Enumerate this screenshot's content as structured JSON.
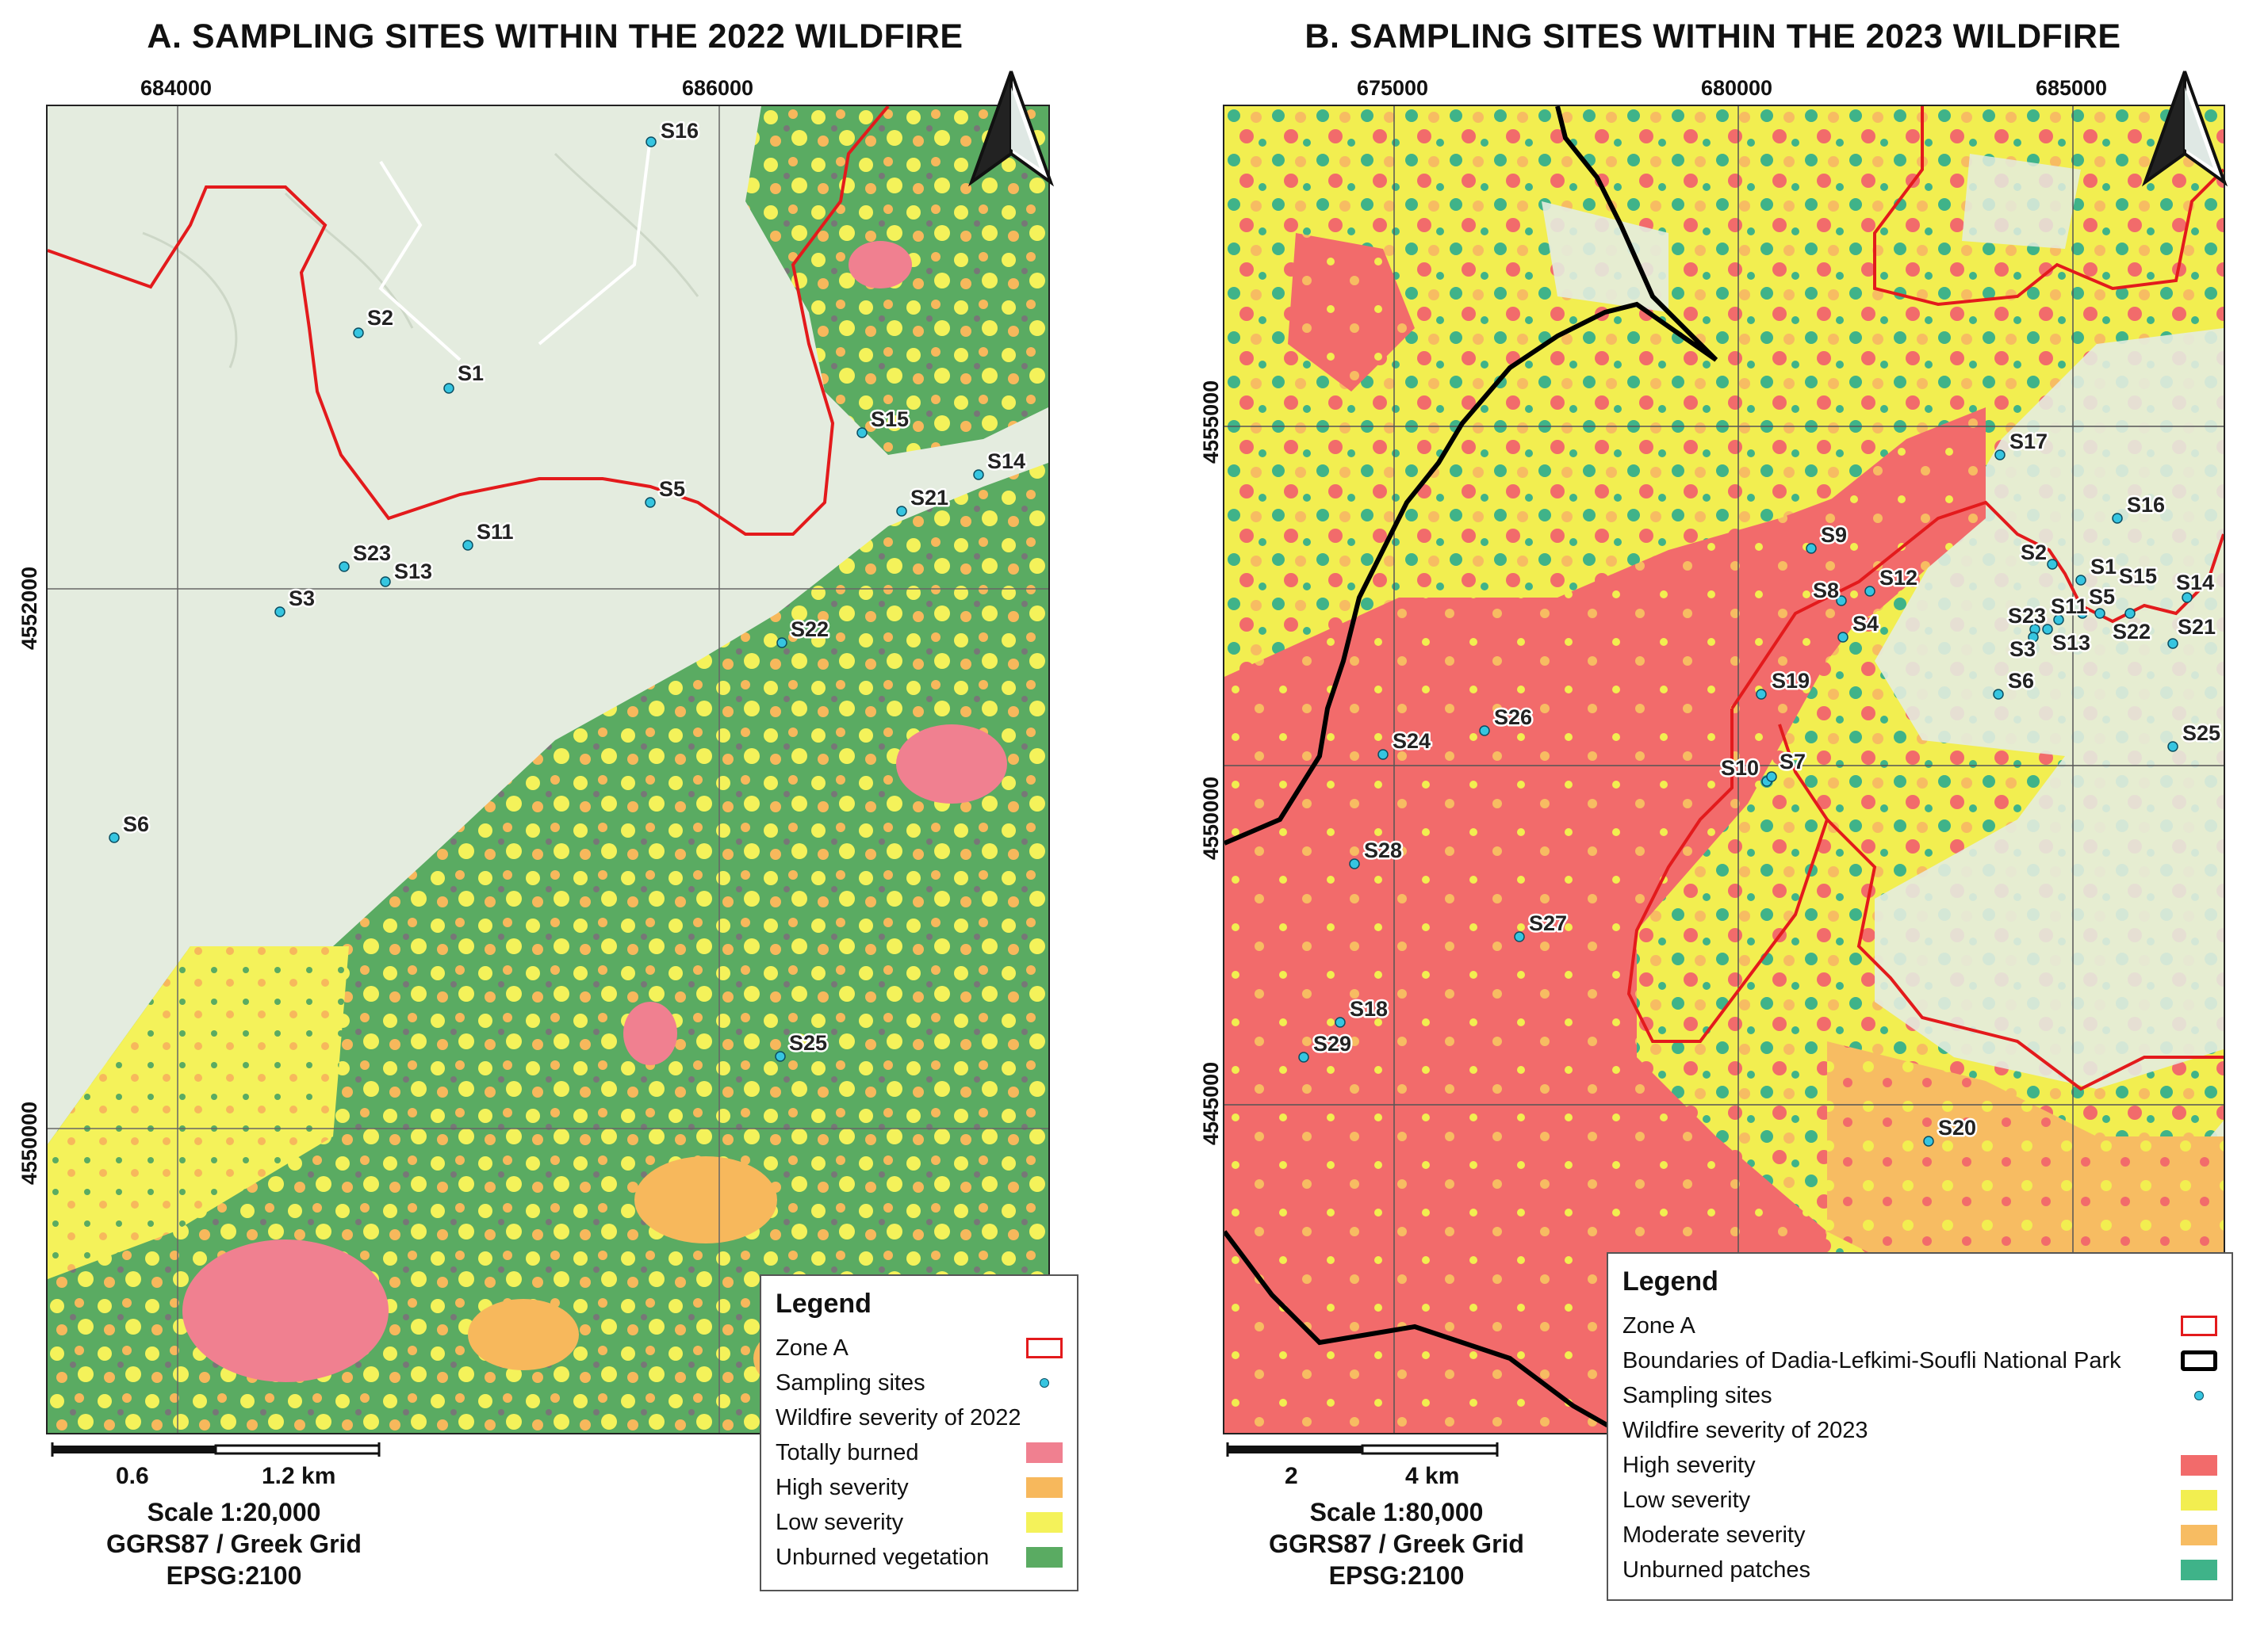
{
  "panel_a": {
    "title": "A. SAMPLING SITES WITHIN THE 2022 WILDFIRE",
    "x_ticks": [
      "684000",
      "686000"
    ],
    "y_ticks": [
      "4552000",
      "4550000"
    ],
    "sites": [
      "S16",
      "S2",
      "S1",
      "S15",
      "S14",
      "S5",
      "S21",
      "S11",
      "S23",
      "S13",
      "S3",
      "S22",
      "S6",
      "S25"
    ],
    "legend": {
      "title": "Legend",
      "zone": "Zone A",
      "sampling": "Sampling sites",
      "severity_heading": "Wildfire severity of 2022",
      "classes": [
        {
          "label": "Totally burned",
          "color": "#f08090"
        },
        {
          "label": "High severity",
          "color": "#f7b85c"
        },
        {
          "label": "Low severity",
          "color": "#f4f25a"
        },
        {
          "label": "Unburned vegetation",
          "color": "#5aab62"
        }
      ]
    },
    "scale_labels": [
      "0.6",
      "1.2 km"
    ],
    "scale_text": [
      "Scale 1:20,000",
      "GGRS87 / Greek Grid",
      "EPSG:2100"
    ]
  },
  "panel_b": {
    "title": "B. SAMPLING SITES WITHIN THE 2023 WILDFIRE",
    "x_ticks": [
      "675000",
      "680000",
      "685000"
    ],
    "y_ticks": [
      "4555000",
      "4550000",
      "4545000"
    ],
    "sites": [
      "S17",
      "S16",
      "S2",
      "S1",
      "S15",
      "S14",
      "S9",
      "S12",
      "S8",
      "S23",
      "S11",
      "S5",
      "S22",
      "S21",
      "S4",
      "S3",
      "S13",
      "S6",
      "S19",
      "S26",
      "S24",
      "S25",
      "S10",
      "S7",
      "S28",
      "S27",
      "S18",
      "S29",
      "S20"
    ],
    "legend": {
      "title": "Legend",
      "zone": "Zone A",
      "park": "Boundaries of Dadia-Lefkimi-Soufli National Park",
      "sampling": "Sampling sites",
      "severity_heading": "Wildfire severity of 2023",
      "classes": [
        {
          "label": "High severity",
          "color": "#f26b6b"
        },
        {
          "label": "Low severity",
          "color": "#f2ee50"
        },
        {
          "label": "Moderate severity",
          "color": "#f7bc62"
        },
        {
          "label": "Unburned patches",
          "color": "#3fb389"
        }
      ]
    },
    "scale_labels": [
      "2",
      "4 km"
    ],
    "scale_text": [
      "Scale 1:80,000",
      "GGRS87 / Greek Grid",
      "EPSG:2100"
    ]
  },
  "colors": {
    "zone_line": "#e31a1c",
    "park_line": "#000000",
    "site_dot": "#36c5e0",
    "unburned_bg": "#e4ecdf"
  },
  "icons": {
    "north_arrow": "north-arrow-icon"
  }
}
